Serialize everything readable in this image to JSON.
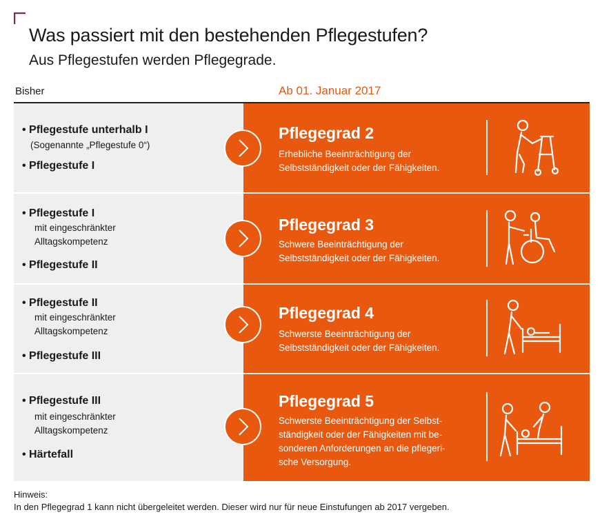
{
  "header": {
    "title": "Was passiert mit den bestehenden Pflegestufen?",
    "subtitle": "Aus Pflegestufen werden Pflegegrade."
  },
  "columns": {
    "left": "Bisher",
    "right": "Ab 01. Januar 2017"
  },
  "rows": [
    {
      "items": [
        {
          "label": "Pflegestufe unterhalb I",
          "note": "(Sogenannte „Pflegestufe 0“)"
        },
        {
          "label": "Pflegestufe I"
        }
      ],
      "grade": "Pflegegrad 2",
      "description": [
        "Erhebliche Beeinträchtigung der",
        "Selbstständigkeit oder der Fähigkeiten."
      ],
      "icon": "person-with-walker-icon"
    },
    {
      "items": [
        {
          "label": "Pflegestufe I",
          "note_lines": [
            "mit eingeschränkter",
            "Alltagskompetenz"
          ]
        },
        {
          "label": "Pflegestufe II"
        }
      ],
      "grade": "Pflegegrad 3",
      "description": [
        "Schwere Beeinträchtigung der",
        "Selbstständigkeit oder der Fähigkeiten."
      ],
      "icon": "wheelchair-assist-icon"
    },
    {
      "items": [
        {
          "label": "Pflegestufe II",
          "note_lines": [
            "mit eingeschränkter",
            "Alltagskompetenz"
          ]
        },
        {
          "label": "Pflegestufe III"
        }
      ],
      "grade": "Pflegegrad 4",
      "description": [
        "Schwerste Beeinträchtigung der",
        "Selbstständigkeit oder der Fähigkeiten."
      ],
      "icon": "person-at-bed-icon"
    },
    {
      "items": [
        {
          "label": "Pflegestufe III",
          "note_lines": [
            "mit eingeschränkter",
            "Alltagskompetenz"
          ]
        },
        {
          "label": "Härtefall"
        }
      ],
      "grade": "Pflegegrad 5",
      "description": [
        "Schwerste Beeinträchtigung der Selbst-",
        "ständigkeit oder der Fähigkeiten mit be-",
        "sonderen Anforderungen an die pflegeri-",
        "sche Versorgung."
      ],
      "icon": "two-caregivers-at-bed-icon"
    }
  ],
  "footer": {
    "label": "Hinweis:",
    "text": "In den Pflegegrad 1 kann nicht übergeleitet werden. Dieser wird nur für neue Einstufungen ab 2017 vergeben."
  },
  "colors": {
    "accent": "#e8590f",
    "left_panel": "#efeff0",
    "corner_mark": "#7a2b5e"
  }
}
